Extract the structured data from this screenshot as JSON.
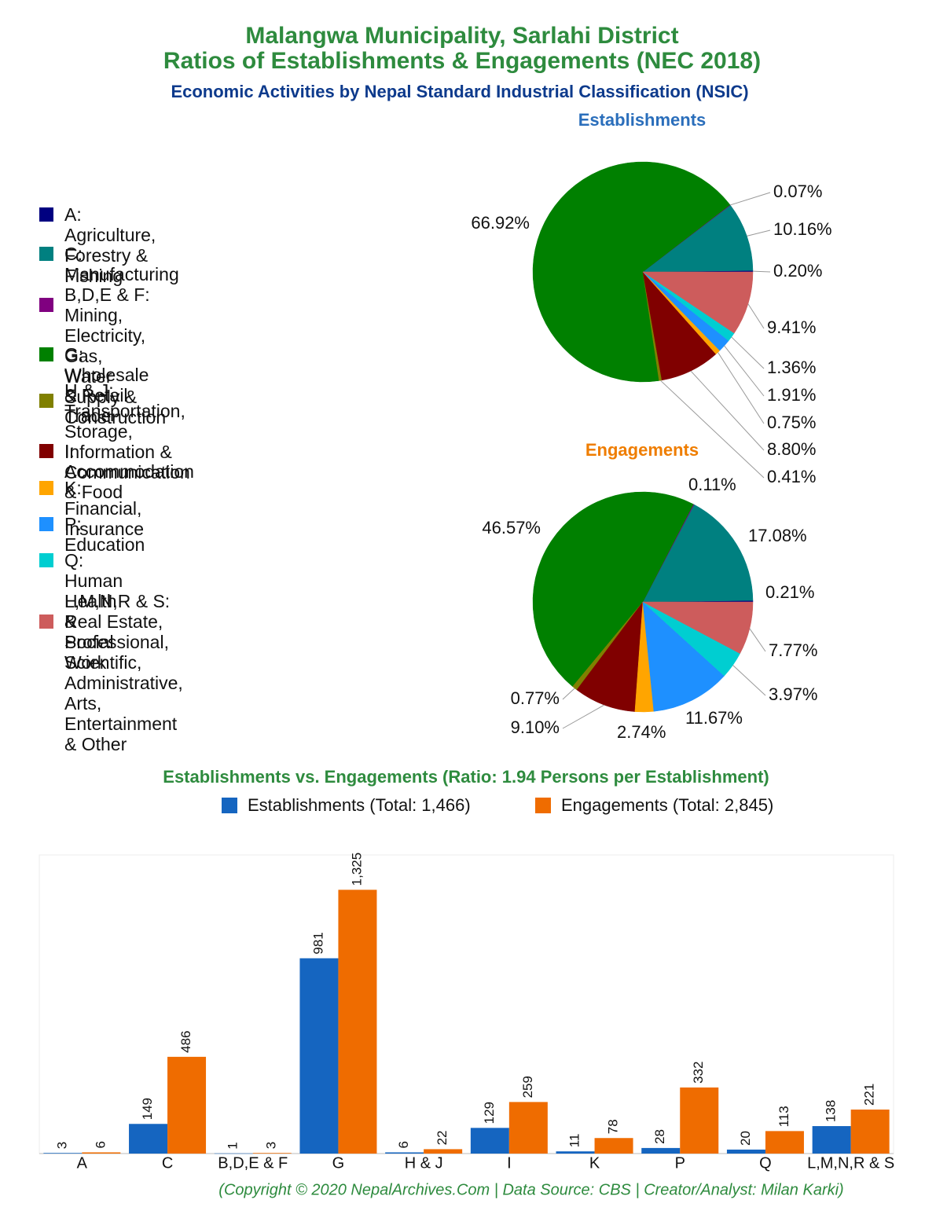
{
  "header": {
    "title": [
      "Malangwa Municipality, Sarlahi District",
      "Ratios of Establishments & Engagements (NEC 2018)"
    ],
    "subtitle": "Economic Activities by Nepal Standard Industrial Classification (NSIC)"
  },
  "chart_data": [
    {
      "type": "pie",
      "title": "Establishments",
      "categories": [
        "A: Agriculture, Forestry & Fishing",
        "C: Manufacturing",
        "B,D,E & F: Mining, Electricity, Gas,\nWater Supply & Construction",
        "G: Wholesale & Retail Trade",
        "H & J: Transportation, Storage,\nInformation & Communication",
        "I: Accommodation & Food",
        "K: Financial, Insurance",
        "P: Education",
        "Q: Human Health & Social Work",
        "L,M,N,R & S: Real Estate, Professional,\nScientific, Administrative, Arts,\nEntertainment & Other"
      ],
      "colors": [
        "#000080",
        "#008080",
        "#800080",
        "#008000",
        "#808000",
        "#800000",
        "#ffa500",
        "#1e90ff",
        "#00ced1",
        "#cd5c5c"
      ],
      "values": [
        0.2,
        10.16,
        0.07,
        66.92,
        0.41,
        8.8,
        0.75,
        1.91,
        1.36,
        9.41
      ],
      "value_labels": [
        "0.20%",
        "10.16%",
        "0.07%",
        "66.92%",
        "0.41%",
        "8.80%",
        "0.75%",
        "1.91%",
        "1.36%",
        "9.41%"
      ]
    },
    {
      "type": "pie",
      "title": "Engagements",
      "colors": [
        "#000080",
        "#008080",
        "#800080",
        "#008000",
        "#808000",
        "#800000",
        "#ffa500",
        "#1e90ff",
        "#00ced1",
        "#cd5c5c"
      ],
      "values": [
        0.21,
        17.08,
        0.11,
        46.57,
        0.77,
        9.1,
        2.74,
        11.67,
        3.97,
        7.77
      ],
      "value_labels": [
        "0.21%",
        "17.08%",
        "0.11%",
        "46.57%",
        "0.77%",
        "9.10%",
        "2.74%",
        "11.67%",
        "3.97%",
        "7.77%"
      ]
    },
    {
      "type": "bar",
      "title": "Establishments vs. Engagements (Ratio: 1.94 Persons per Establishment)",
      "categories": [
        "A",
        "C",
        "B,D,E & F",
        "G",
        "H & J",
        "I",
        "K",
        "P",
        "Q",
        "L,M,N,R & S"
      ],
      "series": [
        {
          "name": "Establishments (Total: 1,466)",
          "color": "#1565c0",
          "values": [
            3,
            149,
            1,
            981,
            6,
            129,
            11,
            28,
            20,
            138
          ]
        },
        {
          "name": "Engagements (Total: 2,845)",
          "color": "#ef6c00",
          "values": [
            6,
            486,
            3,
            1325,
            22,
            259,
            78,
            332,
            113,
            221
          ],
          "value_labels": [
            "6",
            "486",
            "3",
            "1,325",
            "22",
            "259",
            "78",
            "332",
            "113",
            "221"
          ]
        }
      ],
      "ylim": [
        0,
        1500
      ]
    }
  ],
  "footer": "(Copyright © 2020 NepalArchives.Com | Data Source: CBS | Creator/Analyst: Milan Karki)"
}
